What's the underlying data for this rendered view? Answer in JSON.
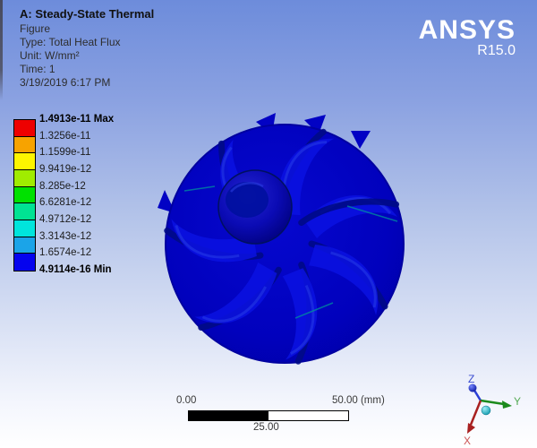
{
  "header": {
    "title": "A: Steady-State Thermal",
    "lines": [
      "Figure",
      "Type: Total Heat Flux",
      "Unit: W/mm²",
      "Time: 1",
      "3/19/2019 6:17 PM"
    ]
  },
  "brand": {
    "name": "ANSYS",
    "version": "R15.0"
  },
  "legend": {
    "values": [
      "1.4913e-11 Max",
      "1.3256e-11",
      "1.1599e-11",
      "9.9419e-12",
      "8.285e-12",
      "6.6281e-12",
      "4.9712e-12",
      "3.3143e-12",
      "1.6574e-12",
      "4.9114e-16 Min"
    ],
    "band_colors": [
      "#ee0000",
      "#f7a300",
      "#fdf500",
      "#a0ec00",
      "#00e100",
      "#00e393",
      "#00e5dc",
      "#1ba4e8",
      "#0503ee"
    ]
  },
  "scalebar": {
    "left": "0.00",
    "right": "50.00 (mm)",
    "center": "25.00"
  },
  "triad": {
    "x": "X",
    "y": "Y",
    "z": "Z",
    "colors": {
      "x_axis": "#a82020",
      "y_axis": "#1c8a1c",
      "z_axis": "#2b3fd6",
      "x_label": "#cc5555",
      "y_label": "#55aa55",
      "z_label": "#3c4ed0",
      "origin_ball": "#38c8dc"
    }
  },
  "model": {
    "result_color": "#0101bd",
    "shade_dark": "#000a86",
    "shade_light": "#0a12e2"
  }
}
